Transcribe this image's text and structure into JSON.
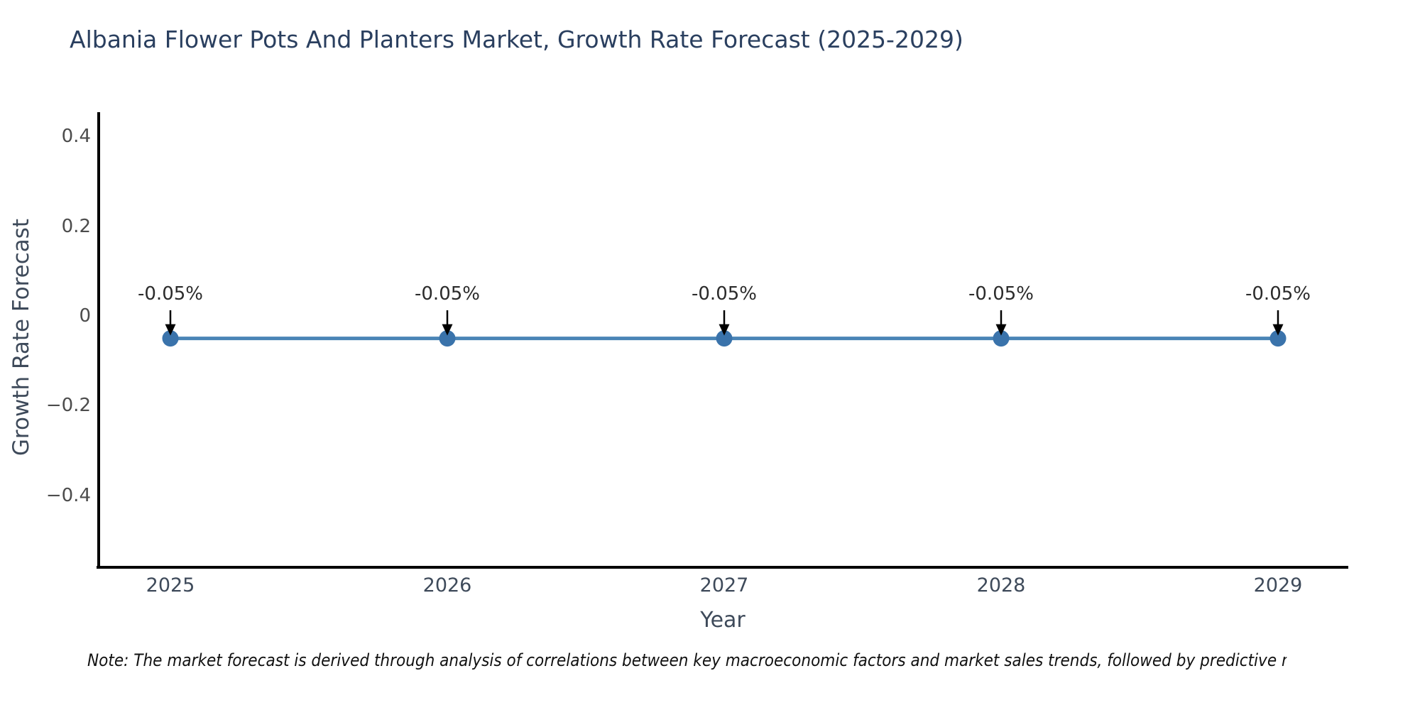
{
  "title": "Albania Flower Pots And Planters Market, Growth Rate Forecast (2025-2029)",
  "note": "Note: The market forecast is derived through analysis of correlations between key macroeconomic factors and market sales trends, followed by predictive modeling to project future sa",
  "chart_data": {
    "type": "line",
    "title": "Albania Flower Pots And Planters Market, Growth Rate Forecast (2025-2029)",
    "xlabel": "Year",
    "ylabel": "Growth Rate Forecast",
    "x": [
      2025,
      2026,
      2027,
      2028,
      2029
    ],
    "x_labels": [
      "2025",
      "2026",
      "2027",
      "2028",
      "2029"
    ],
    "series": [
      {
        "name": "Growth Rate Forecast",
        "values": [
          -0.05,
          -0.05,
          -0.05,
          -0.05,
          -0.05
        ]
      }
    ],
    "point_labels": [
      "-0.05%",
      "-0.05%",
      "-0.05%",
      "-0.05%",
      "-0.05%"
    ],
    "y_ticks": [
      {
        "label": "0.4",
        "value": 0.4
      },
      {
        "label": "0.2",
        "value": 0.2
      },
      {
        "label": "0",
        "value": 0
      },
      {
        "label": "−0.2",
        "value": -0.2
      },
      {
        "label": "−0.4",
        "value": -0.4
      }
    ],
    "ylim": [
      -0.56,
      0.45
    ],
    "grid": false,
    "legend_position": "none",
    "colors": {
      "line": "#4a85b6",
      "marker": "#3a73ab",
      "axis": "#000000",
      "arrow": "#000000"
    }
  }
}
